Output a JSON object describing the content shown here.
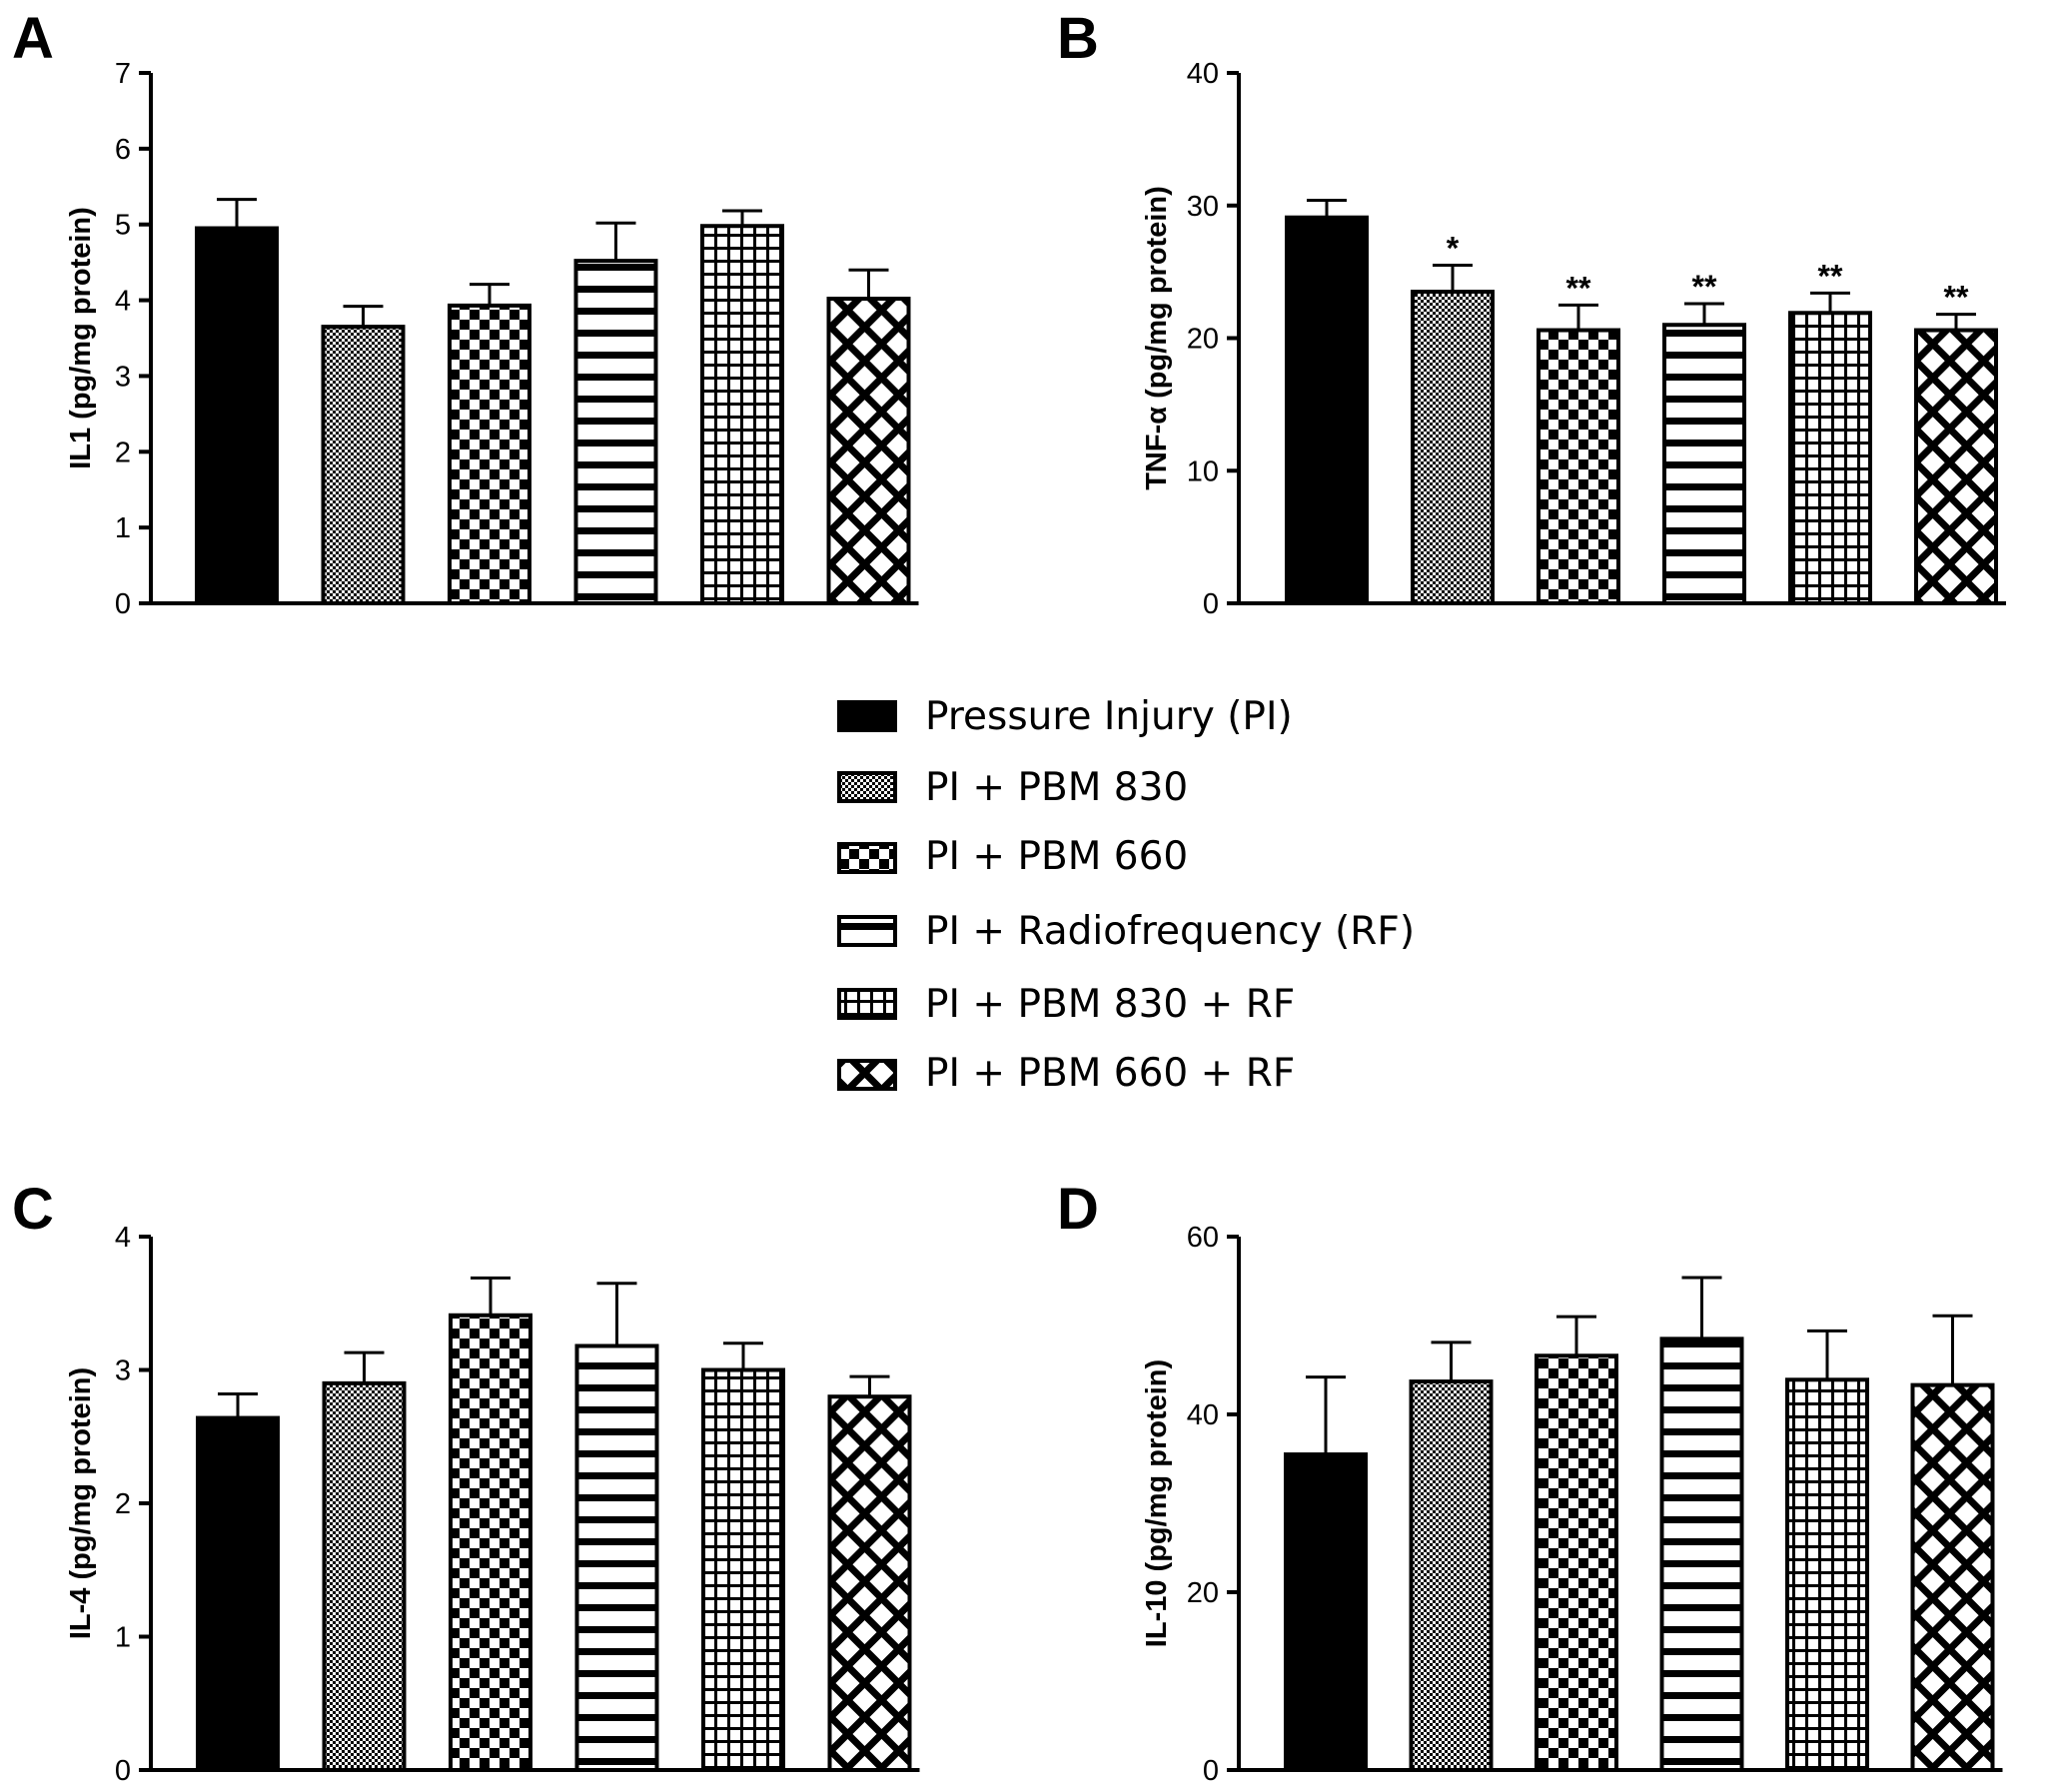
{
  "legend": {
    "items": [
      {
        "label": "Pressure Injury (PI)",
        "pattern": "solid"
      },
      {
        "label": "PI + PBM 830",
        "pattern": "fine-check"
      },
      {
        "label": "PI + PBM 660",
        "pattern": "checker"
      },
      {
        "label": "PI + Radiofrequency (RF)",
        "pattern": "hstripe"
      },
      {
        "label": "PI + PBM 830 + RF",
        "pattern": "grid"
      },
      {
        "label": "PI + PBM 660 + RF",
        "pattern": "diamond"
      }
    ]
  },
  "colors": {
    "ink": "#000000",
    "background": "#ffffff"
  },
  "chart_data": [
    {
      "type": "bar",
      "panel": "A",
      "title": "",
      "xlabel": "",
      "ylabel": "IL1 (pg/mg protein)",
      "ylim": [
        0,
        7
      ],
      "yticks": [
        0,
        1,
        2,
        3,
        4,
        5,
        6,
        7
      ],
      "categories": [
        "Pressure Injury (PI)",
        "PI + PBM 830",
        "PI + PBM 660",
        "PI + Radiofrequency (RF)",
        "PI + PBM 830 + RF",
        "PI + PBM 660 + RF"
      ],
      "values": [
        4.95,
        3.65,
        3.93,
        4.52,
        4.98,
        4.02
      ],
      "errors": [
        0.38,
        0.27,
        0.28,
        0.5,
        0.2,
        0.38
      ],
      "annotations": [
        "",
        "",
        "",
        "",
        "",
        ""
      ]
    },
    {
      "type": "bar",
      "panel": "B",
      "title": "",
      "xlabel": "",
      "ylabel": "TNF-α (pg/mg protein)",
      "ylim": [
        0,
        40
      ],
      "yticks": [
        0,
        10,
        20,
        30,
        40
      ],
      "categories": [
        "Pressure Injury (PI)",
        "PI + PBM 830",
        "PI + PBM 660",
        "PI + Radiofrequency (RF)",
        "PI + PBM 830 + RF",
        "PI + PBM 660 + RF"
      ],
      "values": [
        29.1,
        23.5,
        20.6,
        21.0,
        21.9,
        20.6
      ],
      "errors": [
        1.3,
        2.0,
        1.9,
        1.6,
        1.5,
        1.2
      ],
      "annotations": [
        "",
        "*",
        "**",
        "**",
        "**",
        "**"
      ]
    },
    {
      "type": "bar",
      "panel": "C",
      "title": "",
      "xlabel": "",
      "ylabel": "IL-4 (pg/mg protein)",
      "ylim": [
        0,
        4
      ],
      "yticks": [
        0,
        1,
        2,
        3,
        4
      ],
      "categories": [
        "Pressure Injury (PI)",
        "PI + PBM 830",
        "PI + PBM 660",
        "PI + Radiofrequency (RF)",
        "PI + PBM 830 + RF",
        "PI + PBM 660 + RF"
      ],
      "values": [
        2.64,
        2.9,
        3.41,
        3.18,
        3.0,
        2.8
      ],
      "errors": [
        0.18,
        0.23,
        0.28,
        0.47,
        0.2,
        0.15
      ],
      "annotations": [
        "",
        "",
        "",
        "",
        "",
        ""
      ]
    },
    {
      "type": "bar",
      "panel": "D",
      "title": "",
      "xlabel": "",
      "ylabel": "IL-10 (pg/mg protein)",
      "ylim": [
        0,
        60
      ],
      "yticks": [
        0,
        20,
        40,
        60
      ],
      "categories": [
        "Pressure Injury (PI)",
        "PI + PBM 830",
        "PI + PBM 660",
        "PI + Radiofrequency (RF)",
        "PI + PBM 830 + RF",
        "PI + PBM 660 + RF"
      ],
      "values": [
        35.5,
        43.7,
        46.6,
        48.5,
        43.9,
        43.3
      ],
      "errors": [
        8.7,
        4.4,
        4.4,
        6.9,
        5.5,
        7.8
      ],
      "annotations": [
        "",
        "",
        "",
        "",
        "",
        ""
      ]
    }
  ]
}
